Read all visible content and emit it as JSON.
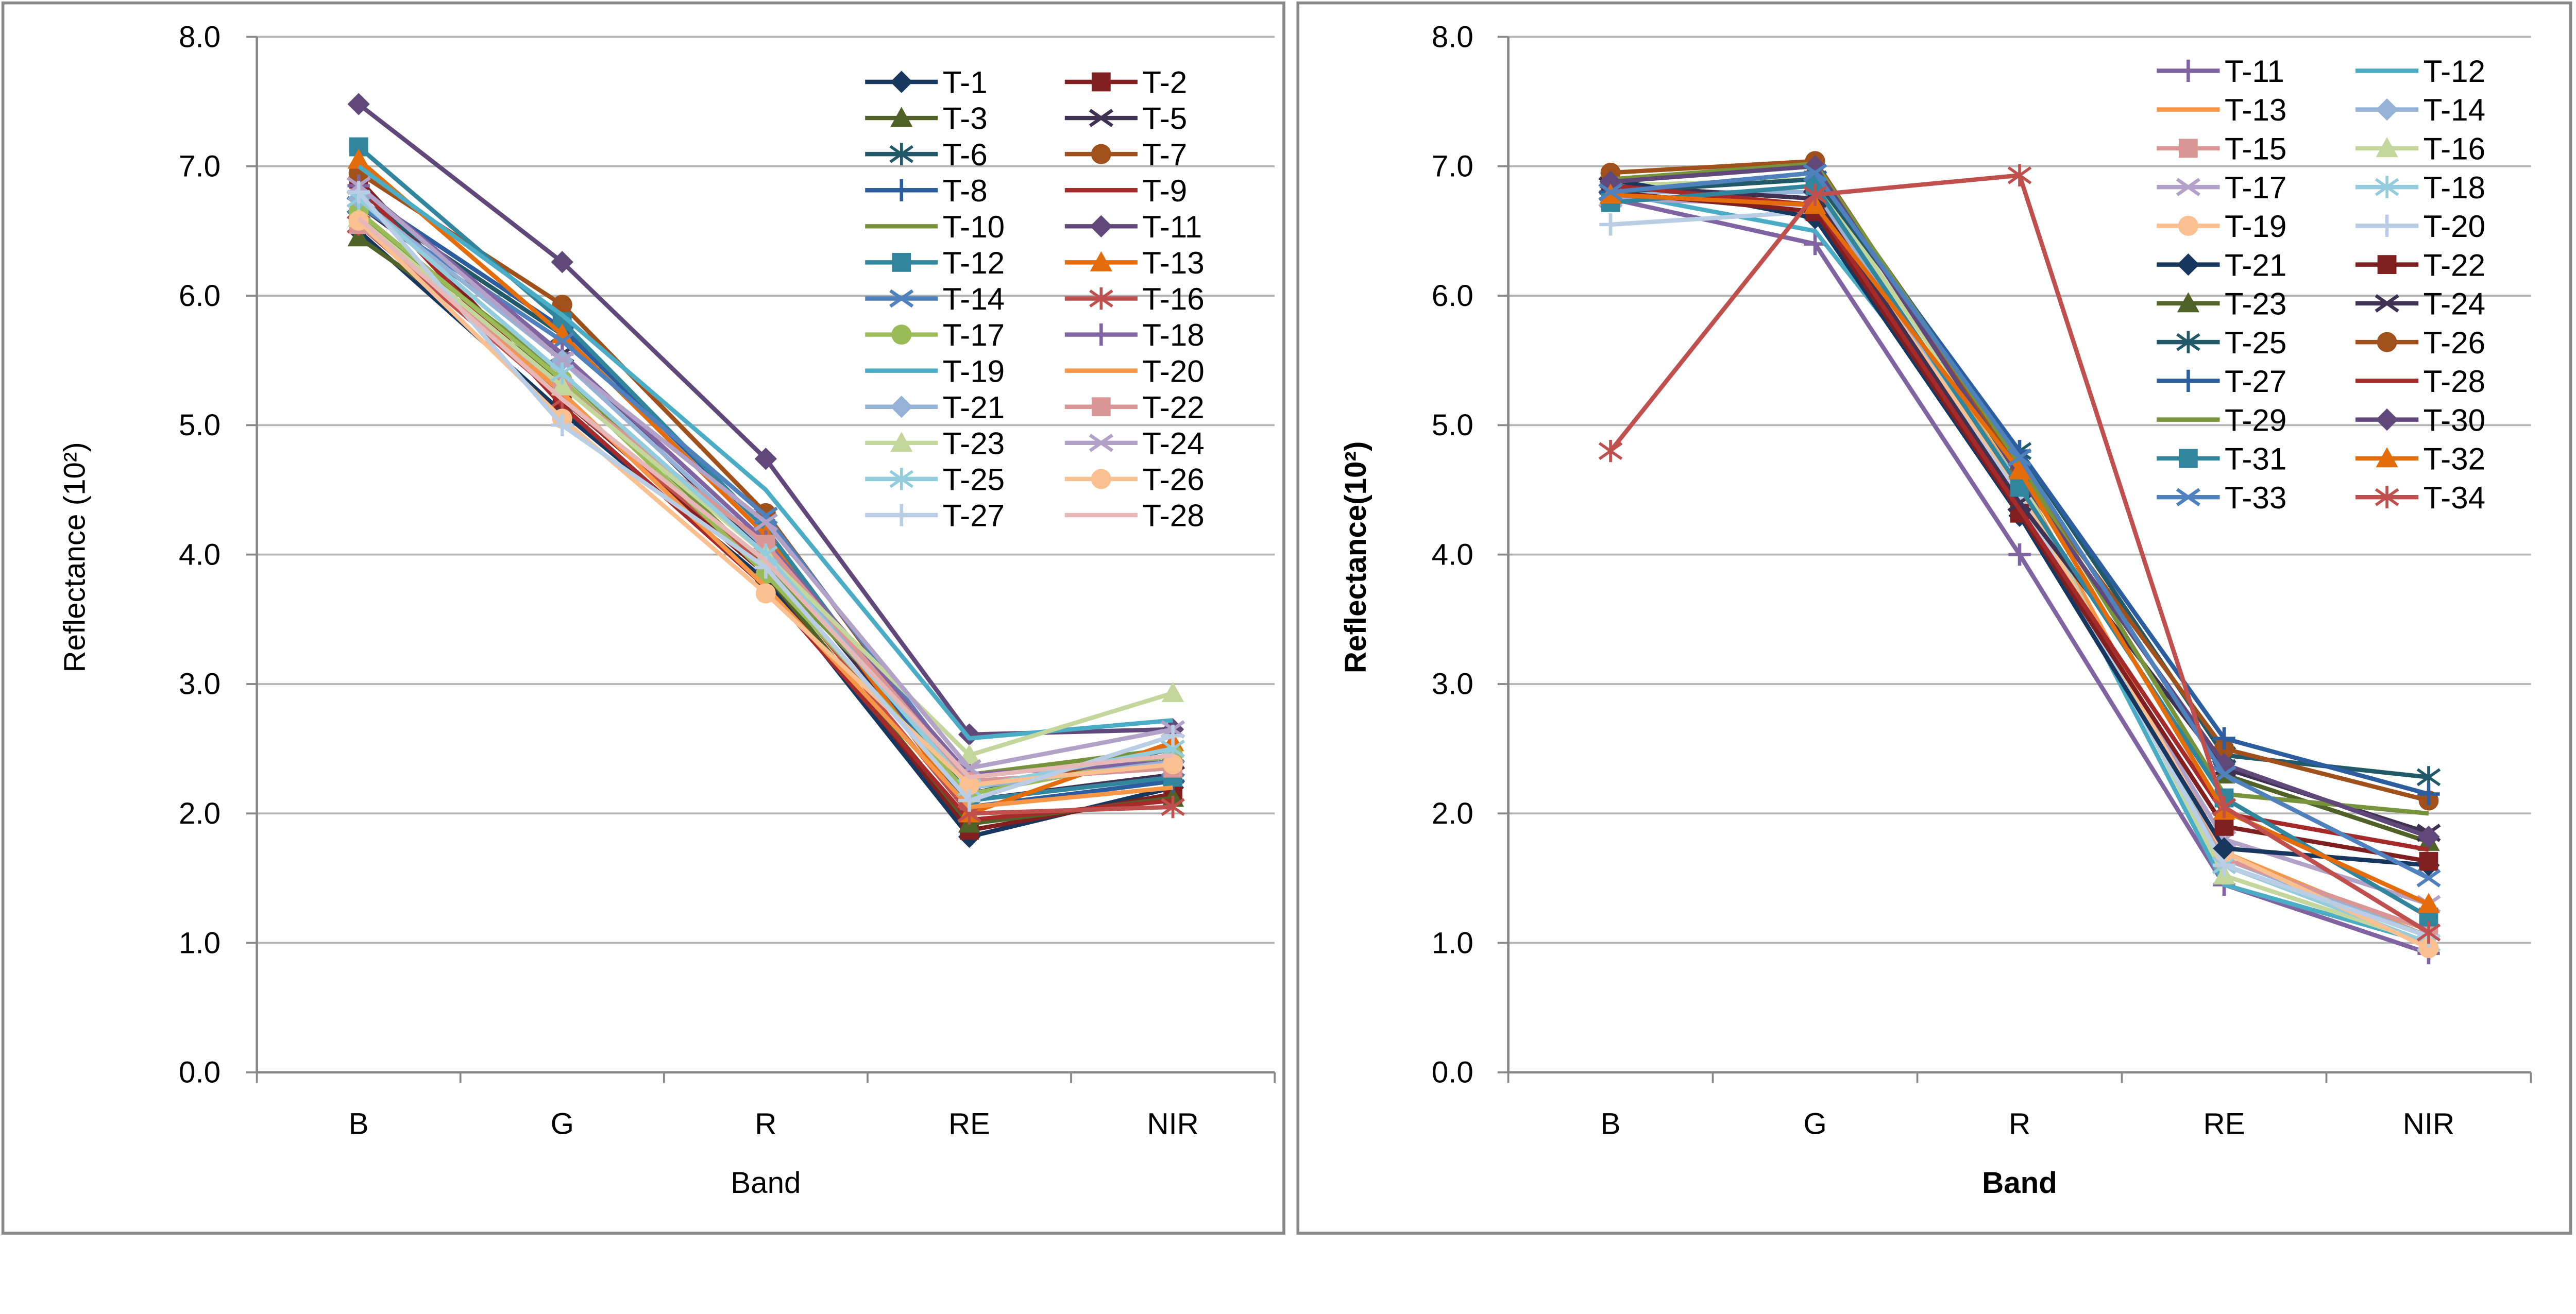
{
  "chart_data": [
    {
      "type": "line",
      "title": "",
      "xlabel": "Band",
      "ylabel": "Reflectance (10²)",
      "categories": [
        "B",
        "G",
        "R",
        "RE",
        "NIR"
      ],
      "ylim": [
        0,
        8
      ],
      "yticks": [
        "0.0",
        "1.0",
        "2.0",
        "3.0",
        "4.0",
        "5.0",
        "6.0",
        "7.0",
        "8.0"
      ],
      "grid": true,
      "legend": "top-right",
      "series": [
        {
          "name": "T-1",
          "color": "#17375E",
          "marker": "diamond",
          "values": [
            6.5,
            5.1,
            3.8,
            1.82,
            2.2
          ]
        },
        {
          "name": "T-2",
          "color": "#7F1F1F",
          "marker": "square",
          "values": [
            6.9,
            5.2,
            3.85,
            1.87,
            2.15
          ]
        },
        {
          "name": "T-3",
          "color": "#4F6228",
          "marker": "triangle",
          "values": [
            6.45,
            5.35,
            3.85,
            1.92,
            2.12
          ]
        },
        {
          "name": "T-5",
          "color": "#3F3151",
          "marker": "x",
          "values": [
            6.7,
            5.55,
            4.0,
            2.1,
            2.3
          ]
        },
        {
          "name": "T-6",
          "color": "#215968",
          "marker": "star",
          "values": [
            6.75,
            5.7,
            4.15,
            2.15,
            2.5
          ]
        },
        {
          "name": "T-7",
          "color": "#A0501A",
          "marker": "circle",
          "values": [
            6.95,
            5.93,
            4.32,
            2.2,
            2.45
          ]
        },
        {
          "name": "T-8",
          "color": "#2C5D9E",
          "marker": "plus",
          "values": [
            6.8,
            5.75,
            4.2,
            2.05,
            2.25
          ]
        },
        {
          "name": "T-9",
          "color": "#A52A2A",
          "marker": "none",
          "values": [
            6.85,
            5.15,
            3.75,
            1.95,
            2.1
          ]
        },
        {
          "name": "T-10",
          "color": "#77933C",
          "marker": "none",
          "values": [
            6.6,
            5.4,
            3.9,
            2.3,
            2.5
          ]
        },
        {
          "name": "T-11",
          "color": "#60497A",
          "marker": "diamond",
          "values": [
            7.48,
            6.26,
            4.74,
            2.61,
            2.65
          ]
        },
        {
          "name": "T-12",
          "color": "#31859C",
          "marker": "square",
          "values": [
            7.15,
            5.8,
            4.2,
            2.1,
            2.28
          ]
        },
        {
          "name": "T-13",
          "color": "#E46C0A",
          "marker": "triangle",
          "values": [
            7.05,
            5.7,
            4.15,
            2.0,
            2.55
          ]
        },
        {
          "name": "T-14",
          "color": "#4F81BD",
          "marker": "x",
          "values": [
            6.7,
            5.65,
            4.3,
            2.25,
            2.35
          ]
        },
        {
          "name": "T-16",
          "color": "#C0504D",
          "marker": "star",
          "values": [
            6.55,
            5.2,
            3.9,
            2.0,
            2.05
          ]
        },
        {
          "name": "T-17",
          "color": "#9BBB59",
          "marker": "circle",
          "values": [
            6.65,
            5.35,
            3.85,
            2.15,
            2.45
          ]
        },
        {
          "name": "T-18",
          "color": "#8064A2",
          "marker": "plus",
          "values": [
            6.85,
            5.55,
            4.1,
            2.3,
            2.4
          ]
        },
        {
          "name": "T-19",
          "color": "#4BACC6",
          "marker": "none",
          "values": [
            7.0,
            5.85,
            4.5,
            2.58,
            2.72
          ]
        },
        {
          "name": "T-20",
          "color": "#F79646",
          "marker": "none",
          "values": [
            6.6,
            5.25,
            3.75,
            2.05,
            2.2
          ]
        },
        {
          "name": "T-21",
          "color": "#95B3D7",
          "marker": "diamond",
          "values": [
            6.75,
            5.5,
            4.05,
            2.2,
            2.4
          ]
        },
        {
          "name": "T-22",
          "color": "#D99694",
          "marker": "square",
          "values": [
            6.55,
            5.3,
            4.08,
            2.25,
            2.35
          ]
        },
        {
          "name": "T-23",
          "color": "#C3D69B",
          "marker": "triangle",
          "values": [
            6.6,
            5.3,
            4.0,
            2.45,
            2.93
          ]
        },
        {
          "name": "T-24",
          "color": "#B3A2C7",
          "marker": "x",
          "values": [
            6.85,
            5.5,
            4.25,
            2.35,
            2.65
          ]
        },
        {
          "name": "T-25",
          "color": "#93CDDD",
          "marker": "star",
          "values": [
            6.75,
            5.4,
            4.0,
            2.2,
            2.5
          ]
        },
        {
          "name": "T-26",
          "color": "#FAC090",
          "marker": "circle",
          "values": [
            6.58,
            5.05,
            3.7,
            2.22,
            2.38
          ]
        },
        {
          "name": "T-27",
          "color": "#B9CDE5",
          "marker": "plus",
          "values": [
            6.8,
            5.0,
            3.9,
            2.1,
            2.6
          ]
        },
        {
          "name": "T-28",
          "color": "#E6B9B8",
          "marker": "none",
          "values": [
            6.6,
            5.2,
            3.95,
            2.28,
            2.45
          ]
        }
      ]
    },
    {
      "type": "line",
      "title": "",
      "xlabel": "Band",
      "ylabel": "Reflectance(10²)",
      "categories": [
        "B",
        "G",
        "R",
        "RE",
        "NIR"
      ],
      "ylim": [
        0,
        8
      ],
      "yticks": [
        "0.0",
        "1.0",
        "2.0",
        "3.0",
        "4.0",
        "5.0",
        "6.0",
        "7.0",
        "8.0"
      ],
      "grid": true,
      "legend": "top-right",
      "series": [
        {
          "name": "T-11",
          "color": "#8064A2",
          "marker": "plus",
          "values": [
            6.75,
            6.4,
            4.0,
            1.45,
            0.92
          ]
        },
        {
          "name": "T-12",
          "color": "#4BACC6",
          "marker": "none",
          "values": [
            6.8,
            6.5,
            4.5,
            1.45,
            1.0
          ]
        },
        {
          "name": "T-13",
          "color": "#F79646",
          "marker": "none",
          "values": [
            6.85,
            6.75,
            4.6,
            1.7,
            1.05
          ]
        },
        {
          "name": "T-14",
          "color": "#95B3D7",
          "marker": "diamond",
          "values": [
            6.8,
            6.8,
            4.5,
            1.65,
            1.05
          ]
        },
        {
          "name": "T-15",
          "color": "#D99694",
          "marker": "square",
          "values": [
            6.85,
            6.75,
            4.45,
            1.65,
            1.1
          ]
        },
        {
          "name": "T-16",
          "color": "#C3D69B",
          "marker": "triangle",
          "values": [
            6.85,
            6.9,
            4.6,
            1.52,
            1.0
          ]
        },
        {
          "name": "T-17",
          "color": "#B3A2C7",
          "marker": "x",
          "values": [
            6.75,
            6.7,
            4.4,
            1.8,
            1.3
          ]
        },
        {
          "name": "T-18",
          "color": "#93CDDD",
          "marker": "star",
          "values": [
            6.8,
            6.65,
            4.55,
            1.6,
            1.0
          ]
        },
        {
          "name": "T-19",
          "color": "#FAC090",
          "marker": "circle",
          "values": [
            6.85,
            6.7,
            4.5,
            1.7,
            0.96
          ]
        },
        {
          "name": "T-20",
          "color": "#B9CDE5",
          "marker": "plus",
          "values": [
            6.55,
            6.65,
            4.45,
            1.6,
            1.05
          ]
        },
        {
          "name": "T-21",
          "color": "#17375E",
          "marker": "diamond",
          "values": [
            6.9,
            6.6,
            4.3,
            1.73,
            1.6
          ]
        },
        {
          "name": "T-22",
          "color": "#7F1F1F",
          "marker": "square",
          "values": [
            6.8,
            6.65,
            4.32,
            1.9,
            1.63
          ]
        },
        {
          "name": "T-23",
          "color": "#4F6228",
          "marker": "triangle",
          "values": [
            6.9,
            7.0,
            4.75,
            2.3,
            1.78
          ]
        },
        {
          "name": "T-24",
          "color": "#3F3151",
          "marker": "x",
          "values": [
            6.85,
            6.75,
            4.4,
            2.35,
            1.85
          ]
        },
        {
          "name": "T-25",
          "color": "#215968",
          "marker": "star",
          "values": [
            6.8,
            6.9,
            4.8,
            2.45,
            2.28
          ]
        },
        {
          "name": "T-26",
          "color": "#A0501A",
          "marker": "circle",
          "values": [
            6.95,
            7.04,
            4.65,
            2.5,
            2.1
          ]
        },
        {
          "name": "T-27",
          "color": "#2C5D9E",
          "marker": "plus",
          "values": [
            6.8,
            6.95,
            4.8,
            2.58,
            2.15
          ]
        },
        {
          "name": "T-28",
          "color": "#A52A2A",
          "marker": "none",
          "values": [
            6.85,
            6.7,
            4.35,
            2.0,
            1.72
          ]
        },
        {
          "name": "T-29",
          "color": "#77933C",
          "marker": "none",
          "values": [
            6.9,
            7.02,
            4.7,
            2.15,
            2.0
          ]
        },
        {
          "name": "T-30",
          "color": "#60497A",
          "marker": "diamond",
          "values": [
            6.88,
            7.0,
            4.6,
            2.38,
            1.82
          ]
        },
        {
          "name": "T-31",
          "color": "#31859C",
          "marker": "square",
          "values": [
            6.72,
            6.85,
            4.52,
            2.12,
            1.2
          ]
        },
        {
          "name": "T-32",
          "color": "#E46C0A",
          "marker": "triangle",
          "values": [
            6.78,
            6.7,
            4.65,
            2.02,
            1.3
          ]
        },
        {
          "name": "T-33",
          "color": "#4F81BD",
          "marker": "x",
          "values": [
            6.8,
            6.95,
            4.75,
            2.3,
            1.5
          ]
        },
        {
          "name": "T-34",
          "color": "#C0504D",
          "marker": "star",
          "values": [
            4.8,
            6.78,
            6.93,
            2.05,
            1.08
          ]
        }
      ]
    }
  ]
}
